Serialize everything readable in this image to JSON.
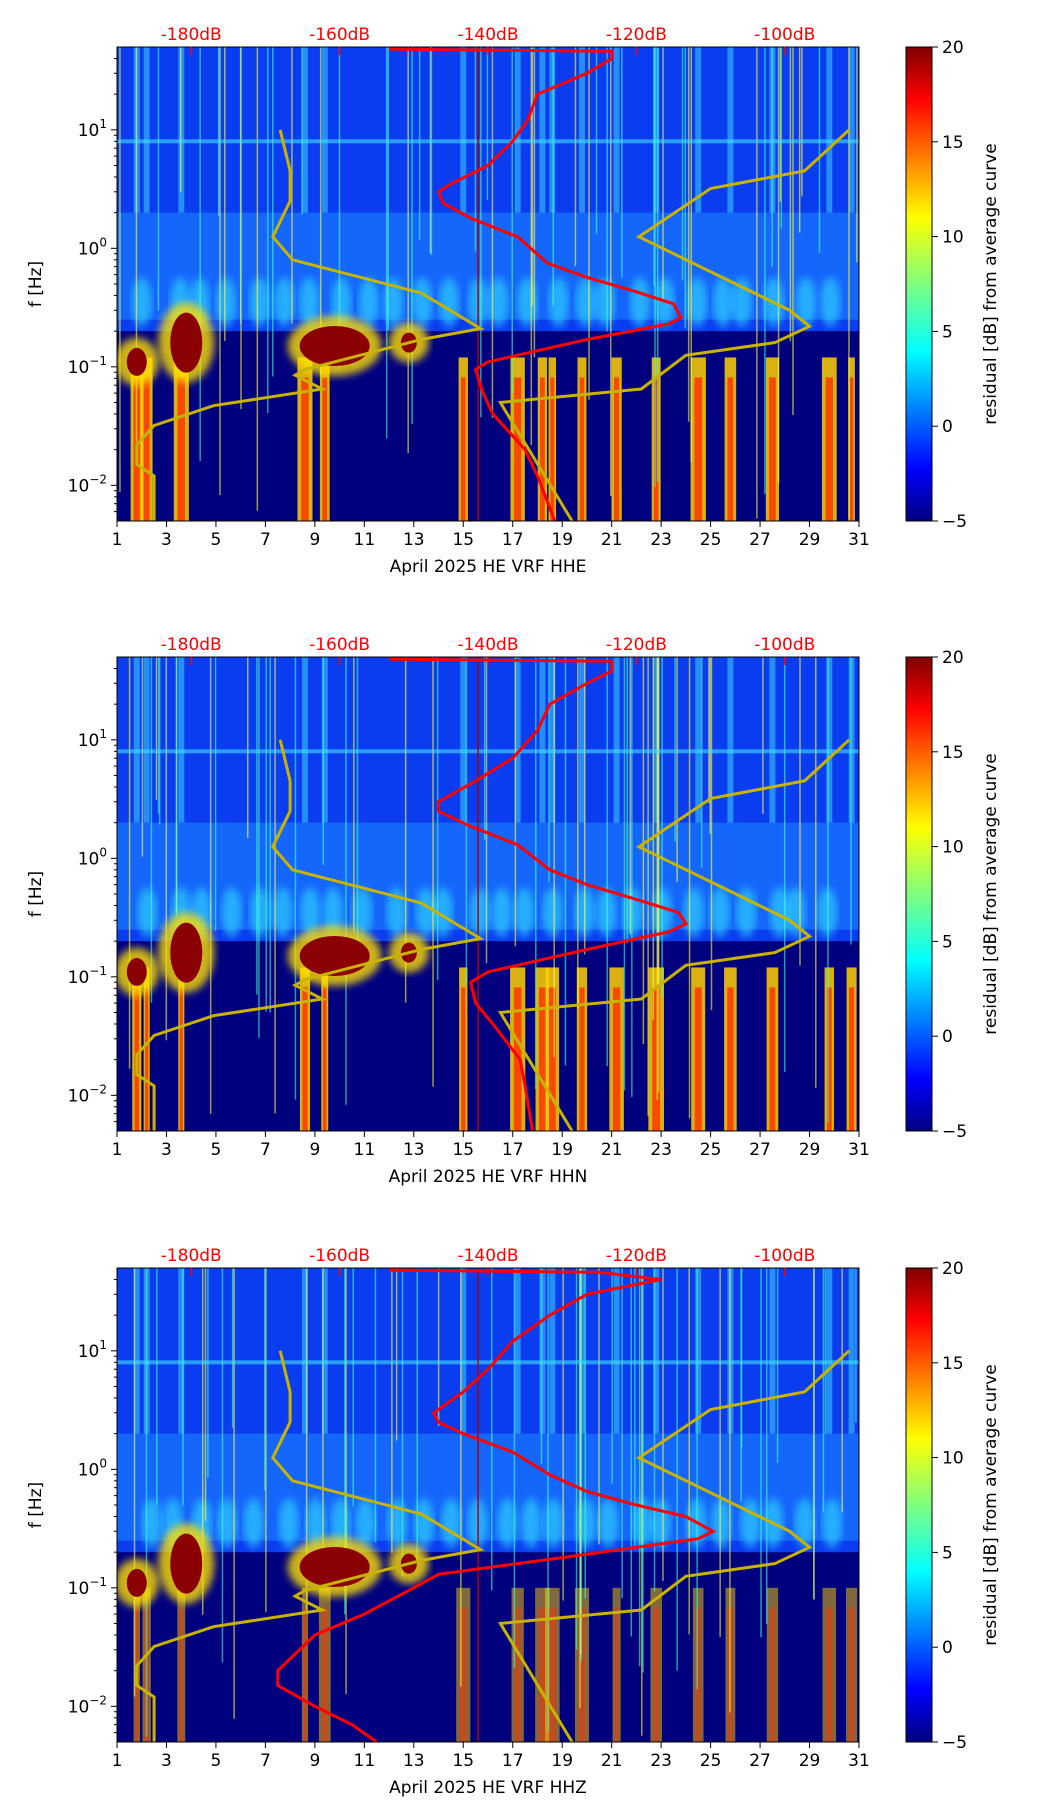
{
  "chart_data": [
    {
      "type": "heatmap",
      "title": "",
      "xlabel": "April 2025 HE VRF  HHE",
      "ylabel": "f [Hz]",
      "xlim": [
        1,
        31
      ],
      "ylim": [
        0.005,
        50
      ],
      "yscale": "log",
      "xticks": [
        "1",
        "3",
        "5",
        "7",
        "9",
        "11",
        "13",
        "15",
        "17",
        "19",
        "21",
        "23",
        "25",
        "27",
        "29",
        "31"
      ],
      "yticks": [
        {
          "v": 0.01,
          "b": "10",
          "e": "−2"
        },
        {
          "v": 0.1,
          "b": "10",
          "e": "−1"
        },
        {
          "v": 1,
          "b": "10",
          "e": "0"
        },
        {
          "v": 10,
          "b": "10",
          "e": "1"
        }
      ],
      "top_db_labels": [
        "-180dB",
        "-160dB",
        "-140dB",
        "-120dB",
        "-100dB"
      ],
      "db_range": [
        -190,
        -90
      ],
      "colorbar": {
        "label": "residual [dB] from average curve",
        "range": [
          -5,
          20
        ],
        "ticks": [
          "20",
          "15",
          "10",
          "5",
          "0",
          "−5"
        ]
      },
      "red_curve": [
        [
          12,
          48
        ],
        [
          21,
          46
        ],
        [
          21,
          40
        ],
        [
          20,
          30
        ],
        [
          18,
          20
        ],
        [
          17.6,
          12
        ],
        [
          17,
          8
        ],
        [
          16,
          5
        ],
        [
          14.5,
          3.5
        ],
        [
          14,
          3
        ],
        [
          14.2,
          2.4
        ],
        [
          15.3,
          1.8
        ],
        [
          17.2,
          1.25
        ],
        [
          18.4,
          0.75
        ],
        [
          20,
          0.57
        ],
        [
          22,
          0.43
        ],
        [
          23.5,
          0.34
        ],
        [
          23.8,
          0.26
        ],
        [
          23.3,
          0.23
        ],
        [
          20,
          0.17
        ],
        [
          16,
          0.11
        ],
        [
          15.5,
          0.095
        ],
        [
          15.8,
          0.06
        ],
        [
          16.2,
          0.04
        ],
        [
          17.5,
          0.02
        ],
        [
          18,
          0.012
        ],
        [
          18.7,
          0.005
        ]
      ],
      "ref_line_day": 15.6
    },
    {
      "type": "heatmap",
      "title": "",
      "xlabel": "April 2025 HE VRF  HHN",
      "ylabel": "f [Hz]",
      "xlim": [
        1,
        31
      ],
      "ylim": [
        0.005,
        50
      ],
      "yscale": "log",
      "xticks": [
        "1",
        "3",
        "5",
        "7",
        "9",
        "11",
        "13",
        "15",
        "17",
        "19",
        "21",
        "23",
        "25",
        "27",
        "29",
        "31"
      ],
      "yticks": [
        {
          "v": 0.01,
          "b": "10",
          "e": "−2"
        },
        {
          "v": 0.1,
          "b": "10",
          "e": "−1"
        },
        {
          "v": 1,
          "b": "10",
          "e": "0"
        },
        {
          "v": 10,
          "b": "10",
          "e": "1"
        }
      ],
      "top_db_labels": [
        "-180dB",
        "-160dB",
        "-140dB",
        "-120dB",
        "-100dB"
      ],
      "db_range": [
        -190,
        -90
      ],
      "colorbar": {
        "label": "residual [dB] from average curve",
        "range": [
          -5,
          20
        ],
        "ticks": [
          "20",
          "15",
          "10",
          "5",
          "0",
          "−5"
        ]
      },
      "red_curve": [
        [
          12,
          48
        ],
        [
          21,
          46
        ],
        [
          21,
          38
        ],
        [
          20,
          30
        ],
        [
          18.5,
          20
        ],
        [
          18,
          12
        ],
        [
          17,
          7
        ],
        [
          15.5,
          4.5
        ],
        [
          14,
          3
        ],
        [
          14,
          2.5
        ],
        [
          15.2,
          1.9
        ],
        [
          17.2,
          1.3
        ],
        [
          18.5,
          0.8
        ],
        [
          20,
          0.6
        ],
        [
          22,
          0.45
        ],
        [
          23.7,
          0.35
        ],
        [
          24,
          0.28
        ],
        [
          23.3,
          0.24
        ],
        [
          20,
          0.17
        ],
        [
          16,
          0.11
        ],
        [
          15.3,
          0.09
        ],
        [
          15.5,
          0.06
        ],
        [
          16.2,
          0.04
        ],
        [
          17.3,
          0.02
        ],
        [
          17.5,
          0.012
        ],
        [
          17.8,
          0.005
        ]
      ],
      "ref_line_day": 15.6
    },
    {
      "type": "heatmap",
      "title": "",
      "xlabel": "April 2025 HE VRF  HHZ",
      "ylabel": "f [Hz]",
      "xlim": [
        1,
        31
      ],
      "ylim": [
        0.005,
        50
      ],
      "yscale": "log",
      "xticks": [
        "1",
        "3",
        "5",
        "7",
        "9",
        "11",
        "13",
        "15",
        "17",
        "19",
        "21",
        "23",
        "25",
        "27",
        "29",
        "31"
      ],
      "yticks": [
        {
          "v": 0.01,
          "b": "10",
          "e": "−2"
        },
        {
          "v": 0.1,
          "b": "10",
          "e": "−1"
        },
        {
          "v": 1,
          "b": "10",
          "e": "0"
        },
        {
          "v": 10,
          "b": "10",
          "e": "1"
        }
      ],
      "top_db_labels": [
        "-180dB",
        "-160dB",
        "-140dB",
        "-120dB",
        "-100dB"
      ],
      "db_range": [
        -190,
        -90
      ],
      "colorbar": {
        "label": "residual [dB] from average curve",
        "range": [
          -5,
          20
        ],
        "ticks": [
          "20",
          "15",
          "10",
          "5",
          "0",
          "−5"
        ]
      },
      "red_curve": [
        [
          12,
          48
        ],
        [
          20.5,
          46
        ],
        [
          23,
          40
        ],
        [
          20,
          30
        ],
        [
          18.5,
          20
        ],
        [
          17,
          12
        ],
        [
          16,
          7
        ],
        [
          15,
          4.5
        ],
        [
          13.8,
          3
        ],
        [
          14,
          2.5
        ],
        [
          15,
          2
        ],
        [
          17,
          1.4
        ],
        [
          18.5,
          0.9
        ],
        [
          20,
          0.65
        ],
        [
          22,
          0.5
        ],
        [
          24,
          0.4
        ],
        [
          25.1,
          0.3
        ],
        [
          24.5,
          0.26
        ],
        [
          19,
          0.18
        ],
        [
          14,
          0.13
        ],
        [
          13,
          0.1
        ],
        [
          11,
          0.06
        ],
        [
          9,
          0.04
        ],
        [
          7.5,
          0.02
        ],
        [
          7.5,
          0.015
        ],
        [
          9,
          0.01
        ],
        [
          10.5,
          0.007
        ],
        [
          11.5,
          0.005
        ]
      ],
      "ref_line_day": 15.6
    }
  ],
  "reference_curves": {
    "low_model": [
      [
        7.6,
        10
      ],
      [
        8,
        4.5
      ],
      [
        8,
        2.5
      ],
      [
        7.3,
        1.25
      ],
      [
        8.1,
        0.8
      ],
      [
        13.3,
        0.42
      ],
      [
        15.7,
        0.21
      ],
      [
        13.3,
        0.17
      ],
      [
        8.6,
        0.095
      ],
      [
        8.2,
        0.085
      ],
      [
        9.3,
        0.065
      ],
      [
        4.9,
        0.047
      ],
      [
        2.5,
        0.032
      ],
      [
        1.8,
        0.022
      ],
      [
        1.8,
        0.015
      ],
      [
        2.5,
        0.012
      ],
      [
        2.5,
        0.005
      ]
    ],
    "high_model": [
      [
        30.6,
        10
      ],
      [
        28.8,
        4.5
      ],
      [
        25,
        3.2
      ],
      [
        22.1,
        1.25
      ],
      [
        28.2,
        0.3
      ],
      [
        29,
        0.22
      ],
      [
        27.6,
        0.16
      ],
      [
        24,
        0.125
      ],
      [
        22.2,
        0.065
      ],
      [
        16.5,
        0.05
      ],
      [
        19.4,
        0.005
      ]
    ],
    "color": "#c8b400"
  },
  "bright_days": [
    1.8,
    2.2,
    3.6,
    8.6,
    9.4,
    15,
    17.2,
    18.2,
    18.6,
    19.8,
    21.2,
    22.8,
    24.5,
    25.8,
    27.5,
    29.8,
    30.7
  ]
}
